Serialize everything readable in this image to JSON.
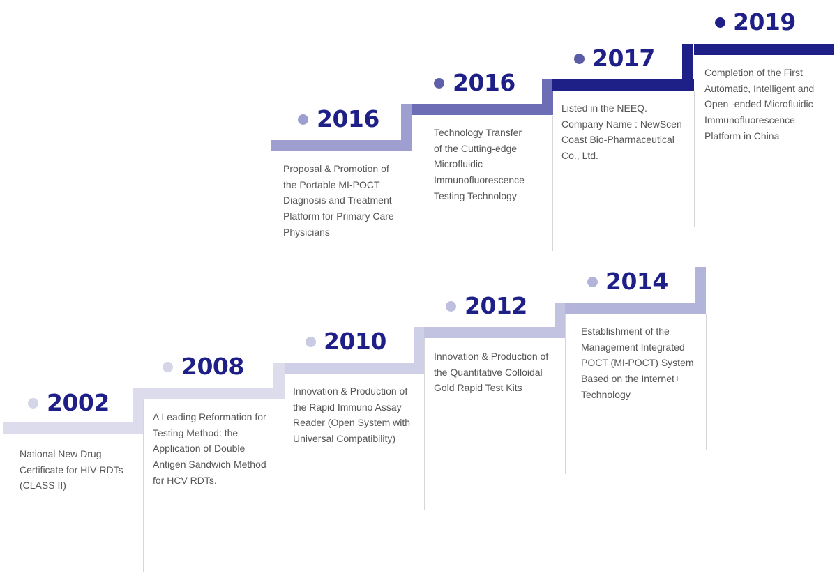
{
  "milestones": [
    {
      "year": "2002",
      "color": "#dcdced",
      "dot_color": "#d4d5e8",
      "lines": [
        "National New Drug",
        "Certificate for HIV RDTs",
        "(CLASS II)"
      ]
    },
    {
      "year": "2008",
      "color": "#dcdced",
      "dot_color": "#d4d5e8",
      "lines": [
        "A Leading Reformation for",
        "Testing Method: the",
        "Application of Double",
        "Antigen Sandwich Method",
        "for HCV RDTs."
      ]
    },
    {
      "year": "2010",
      "color": "#cfd0e8",
      "dot_color": "#c9cae4",
      "lines": [
        "Innovation & Production of",
        "the Rapid Immuno Assay",
        "Reader (Open System with",
        "Universal Compatibility)"
      ]
    },
    {
      "year": "2012",
      "color": "#c2c3e1",
      "dot_color": "#bebfdf",
      "lines": [
        "Innovation & Production of",
        "the Quantitative Colloidal",
        "Gold Rapid Test Kits"
      ]
    },
    {
      "year": "2014",
      "color": "#b3b4da",
      "dot_color": "#b3b4da",
      "lines": [
        "Establishment of the",
        "Management Integrated",
        "POCT (MI-POCT) System",
        "Based on the Internet+",
        "Technology"
      ]
    },
    {
      "year": "2016",
      "color": "#9e9fd0",
      "dot_color": "#9e9fd0",
      "lines": [
        "Proposal & Promotion of",
        "the Portable MI-POCT",
        "Diagnosis and Treatment",
        "Platform for Primary Care",
        "Physicians"
      ]
    },
    {
      "year": "2016",
      "color": "#6c6db5",
      "dot_color": "#5e5fab",
      "lines": [
        "Technology Transfer",
        "of the Cutting-edge",
        "Microfluidic",
        "Immunofluorescence",
        "Testing Technology"
      ]
    },
    {
      "year": "2017",
      "color": "#1e2088",
      "dot_color": "#5a5ca8",
      "lines": [
        "Listed in the NEEQ.",
        "Company Name : NewScen",
        "Coast Bio-Pharmaceutical",
        "Co., Ltd."
      ]
    },
    {
      "year": "2019",
      "color": "#1e2088",
      "dot_color": "#1e2088",
      "lines": [
        "Completion of the First",
        "Automatic, Intelligent and",
        "Open -ended Microfluidic",
        "Immunofluorescence",
        "Platform in China"
      ]
    }
  ]
}
